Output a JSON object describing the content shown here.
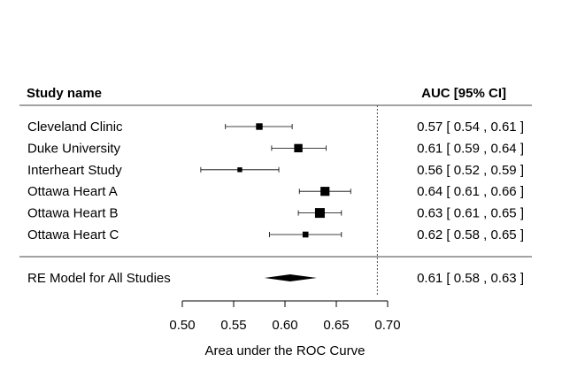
{
  "chart_data": {
    "type": "forest",
    "header": {
      "left": "Study name",
      "right": "AUC [95% CI]"
    },
    "xlabel": "Area under the ROC Curve",
    "xlim": [
      0.5,
      0.7
    ],
    "xticks": [
      "0.50",
      "0.55",
      "0.60",
      "0.65",
      "0.70"
    ],
    "reference_line": 0.69,
    "studies": [
      {
        "name": "Cleveland Clinic",
        "est": 0.575,
        "lo": 0.542,
        "hi": 0.607,
        "ci_text": "0.57 [ 0.54 , 0.61 ]",
        "weight": 0.55
      },
      {
        "name": "Duke University",
        "est": 0.613,
        "lo": 0.587,
        "hi": 0.64,
        "ci_text": "0.61 [ 0.59 , 0.64 ]",
        "weight": 0.8
      },
      {
        "name": "Interheart Study",
        "est": 0.556,
        "lo": 0.518,
        "hi": 0.594,
        "ci_text": "0.56 [ 0.52 , 0.59 ]",
        "weight": 0.3
      },
      {
        "name": "Ottawa Heart A",
        "est": 0.639,
        "lo": 0.614,
        "hi": 0.664,
        "ci_text": "0.64 [ 0.61 , 0.66 ]",
        "weight": 0.9
      },
      {
        "name": "Ottawa Heart B",
        "est": 0.634,
        "lo": 0.613,
        "hi": 0.655,
        "ci_text": "0.63 [ 0.61 , 0.65 ]",
        "weight": 1.0
      },
      {
        "name": "Ottawa Heart C",
        "est": 0.62,
        "lo": 0.585,
        "hi": 0.655,
        "ci_text": "0.62 [ 0.58 , 0.65 ]",
        "weight": 0.45
      }
    ],
    "summary": {
      "name": "RE Model for All Studies",
      "est": 0.605,
      "lo": 0.58,
      "hi": 0.631,
      "ci_text": "0.61 [ 0.58 , 0.63 ]"
    }
  }
}
